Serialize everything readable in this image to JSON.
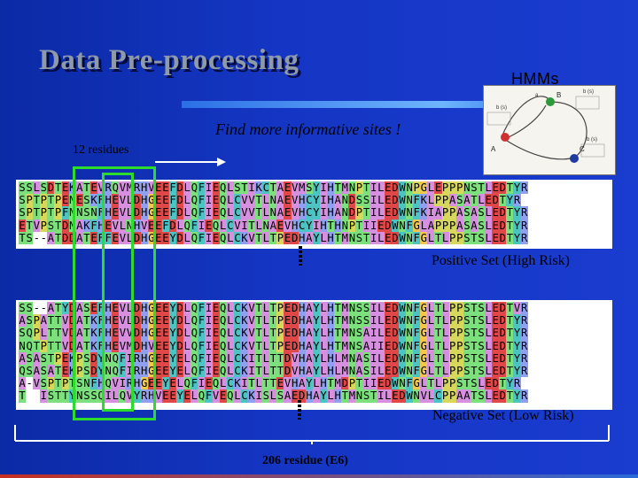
{
  "slide": {
    "title": "Data Pre-processing",
    "hmm_label": "HMMs",
    "subtitle": "Find more informative sites !",
    "residues_label": "12 residues",
    "positive_label": "Positive Set (High Risk)",
    "negative_label": "Negative Set (Low Risk)",
    "width_label": "206 residue (E6)"
  },
  "hmm_diagram": {
    "states": [
      "A",
      "B",
      "C"
    ],
    "labels": [
      "a",
      "b (s)",
      "b (s)",
      "b (s)"
    ]
  },
  "alignment": {
    "positive": [
      "SSLSDTEKATEVRQVMRHVEEFDLQFIEQLSTIKCTAEVMSYIHTMNPTILEDWNPGLEPPPNSTLEDTYR",
      "SPTPTPENESKFHEVLDHGEEFDLQFIEQLCVVTLNAEVHCYIHANDSSILEDWNFKLPPASATLEDTYR",
      "SPTPTPFNNSNFHEVLDHGEEFDLQFIEQLCVVTLNAEVHCYIHANDPTILEDWNFKIAPPASASLEDTYR",
      "ETVPSTDNAKFHEVLNHVEEFDLQFIEQLCVITLNAEVHCYIHTHNPTIIEDWNFGLAPPPASASLEDTYR",
      "TS--ATDDATEFFEVLDHGEEYDLQFIEQLCKVTLTPEDHAYLHTMNSTILEDWNFGLTLPPSTSLEDTYR"
    ],
    "negative": [
      "SS--ATYDASEFHEVLDHGEEYDLQFIEQLCKVTLTPEDHAYLHTMNSSILEDWNFGLTLPPSTSLEDTVR",
      "ASPATTVDATKFHEVLDHGEEYDLQFIEQLCKVTLTPEDHAYLHTMNSSILEDWNFGLTLPPSTSLEDTYR",
      "SQPLTTVDATKFHEVVDHGEEYDLQFIEQLCKVTLTPEDHAYLHTMNSAILEDWNFGLTLPPSTSLEDTYR",
      "NQTPTTVDATKFHEVMDHVEEYDLQFIEQLCKVTLTPEDHAYLHTMNSAIIEDWNFGLTLPPSTSLEDTYR",
      "ASASTPEKPSDYNQFIRHGEEYELQFIEQLCKITLTTDVHAYLHLMNASILEDWNFGLTLPPSTSLEDTYR",
      "QSASATEKPSDYNQFIRHGEEYELQFIEQLCKITLTTDVHAYLHLMNASILEDWNFGLTLPPSTSLEDTYR",
      "A-VSPTPTSNFHQVIRHGEEYELQFIEQLCKITLTTEVHAYLHTMDPTIIEDWNFGLTLPPSTSLEDTYR",
      "T  ISTTYNSSQILQVYRHVEEYELQFVEQLCKISLSAEDHAYLHTMNSTILEDWNVLCPPAATSLEDTYR"
    ]
  },
  "residue_colors": {
    "hydrophobic": "#d78fe0",
    "acidic": "#e04848",
    "basic": "#8fa0f0",
    "polar": "#7ce07c",
    "glycine": "#f2c84b",
    "proline": "#d7d75c",
    "aromatic": "#4cc4c4",
    "other": "#ffffff"
  }
}
